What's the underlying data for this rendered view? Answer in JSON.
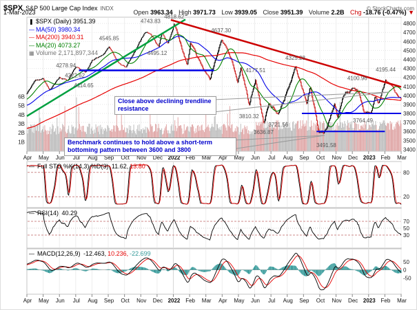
{
  "header": {
    "symbol": "$SPX",
    "name": "S&P 500 Large Cap Index",
    "exchange": "INDX",
    "date": "1-Mar-2023",
    "copyright": "© StockCharts.com",
    "quote": {
      "open_label": "Open",
      "open": "3963.34",
      "high_label": "High",
      "high": "3971.73",
      "low_label": "Low",
      "low": "3939.05",
      "close_label": "Close",
      "close": "3951.39",
      "volume_label": "Volume",
      "volume": "2.2B",
      "chg_label": "Chg",
      "chg": "-18.76 (-0.47%)",
      "direction": "▼"
    }
  },
  "legend": {
    "spx": {
      "icon": "❚",
      "text": "$SPX (Daily) 3951.39",
      "color": "#000000"
    },
    "ma50": {
      "icon": "—",
      "text": "MA(50) 3980.34",
      "color": "#0000e6"
    },
    "ma200": {
      "icon": "—",
      "text": "MA(200) 3940.31",
      "color": "#e60000"
    },
    "ma20": {
      "icon": "—",
      "text": "MA(20) 4073.27",
      "color": "#008000"
    },
    "volume": {
      "icon": "▦",
      "text": "Volume 2,171,897,344",
      "color": "#777777"
    }
  },
  "panels": {
    "sto": {
      "icon": "—",
      "name": "Full STO %K(14,3) %D(3)",
      "k": "11.62,",
      "k_color": "#000000",
      "d": "13.80",
      "d_color": "#e60000",
      "ticks": [
        80,
        20
      ],
      "bands": [
        80,
        20
      ]
    },
    "rsi": {
      "icon": "—",
      "name": "RSI(14)",
      "value": "40.29",
      "value_color": "#000000",
      "ticks": [
        70,
        50,
        30
      ],
      "bands": [
        70,
        30
      ],
      "mid": 50
    },
    "macd": {
      "icon": "—",
      "name": "MACD(12,26,9)",
      "v1": "-12.463,",
      "v1_color": "#000000",
      "v2": "10.236,",
      "v2_color": "#e60000",
      "v3": "-22.699",
      "v3_color": "#339999",
      "ticks": [
        50,
        0,
        -50
      ]
    }
  },
  "axis": {
    "months": [
      "Apr",
      "May",
      "Jun",
      "Jul",
      "Aug",
      "Sep",
      "Oct",
      "Nov",
      "Dec",
      "2022",
      "Feb",
      "Mar",
      "Apr",
      "May",
      "Jun",
      "Jul",
      "Aug",
      "Sep",
      "Oct",
      "Nov",
      "Dec",
      "2023",
      "Feb",
      "Mar"
    ],
    "price_ticks": [
      4800,
      4700,
      4600,
      4500,
      4400,
      4300,
      4200,
      4100,
      4000,
      3900,
      3800,
      3700,
      3600,
      3500,
      3400
    ],
    "volume_ticks": [
      {
        "label": "6B",
        "v": 6
      },
      {
        "label": "5B",
        "v": 5
      },
      {
        "label": "4B",
        "v": 4
      },
      {
        "label": "3B",
        "v": 3
      },
      {
        "label": "2B",
        "v": 2
      },
      {
        "label": "1B",
        "v": 1
      }
    ]
  },
  "annotations": {
    "callout1": "Close above declining trendline resistance",
    "callout2": "Benchmark continues to hold above a short-term bottoming pattern between 3600 and 3800",
    "pointers": [
      [
        309,
        144,
        564,
        133
      ],
      [
        309,
        162,
        564,
        133
      ],
      [
        336,
        203,
        470,
        196
      ],
      [
        336,
        216,
        470,
        196
      ]
    ],
    "price_labels": [
      {
        "text": "4545.85",
        "t": 5.05,
        "price": 4615
      },
      {
        "text": "4743.83",
        "t": 7.6,
        "price": 4805
      },
      {
        "text": "4818.62",
        "t": 9.05,
        "price": 4855
      },
      {
        "text": "4637.30",
        "t": 11.93,
        "price": 4700
      },
      {
        "text": "4495.12",
        "t": 8.0,
        "price": 4450
      },
      {
        "text": "4278.94",
        "t": 2.4,
        "price": 4312
      },
      {
        "text": "4222.62",
        "t": 2.95,
        "price": 4200
      },
      {
        "text": "4114.65",
        "t": 3.5,
        "price": 4090
      },
      {
        "text": "4177.51",
        "t": 14.05,
        "price": 4260
      },
      {
        "text": "4325.28",
        "t": 16.5,
        "price": 4395
      },
      {
        "text": "4100.96",
        "t": 20.3,
        "price": 4170
      },
      {
        "text": "4195.44",
        "t": 22.05,
        "price": 4265
      },
      {
        "text": "3810.32",
        "t": 13.65,
        "price": 3745
      },
      {
        "text": "3721.56",
        "t": 15.45,
        "price": 3655
      },
      {
        "text": "3636.87",
        "t": 14.55,
        "price": 3570
      },
      {
        "text": "3764.49",
        "t": 20.65,
        "price": 3700
      },
      {
        "text": "3491.58",
        "t": 18.4,
        "price": 3425
      }
    ]
  },
  "chart_data": {
    "type": "candlestick",
    "title": "$SPX S&P 500 Large Cap Index - Daily candlesticks with MA(20), MA(50), MA(200), volume overlay, Full Stochastic, RSI and MACD panels",
    "x_range": [
      "Apr-2021",
      "Mar-2023"
    ],
    "price_range": [
      3380,
      4870
    ],
    "last_close": 3951.39,
    "ma_values": {
      "ma20": 4073.27,
      "ma50": 3980.34,
      "ma200": 3940.31
    },
    "indicator_values": {
      "sto_k": 11.62,
      "sto_d": 13.8,
      "rsi": 40.29,
      "macd": -12.463,
      "macd_signal": 10.236,
      "macd_hist": -22.699
    },
    "key_points": [
      4818.62,
      4743.83,
      4637.3,
      4545.85,
      4495.12,
      4325.28,
      4278.94,
      4222.62,
      4195.44,
      4177.51,
      4114.65,
      4100.96,
      3810.32,
      3764.49,
      3721.56,
      3636.87,
      3491.58
    ],
    "pre_anchors": [
      [
        -9,
        3235
      ],
      [
        -7.5,
        3390
      ],
      [
        -7,
        3310
      ],
      [
        -6,
        3585
      ],
      [
        -5,
        3560
      ],
      [
        -4,
        3695
      ],
      [
        -3.5,
        3750
      ],
      [
        -2.5,
        3910
      ],
      [
        -2,
        3790
      ],
      [
        -1,
        3900
      ],
      [
        -0.3,
        3970
      ]
    ],
    "close_anchors": [
      [
        0,
        4020
      ],
      [
        0.5,
        4165
      ],
      [
        1,
        4185
      ],
      [
        1.4,
        4060
      ],
      [
        2,
        4200
      ],
      [
        2.55,
        4170
      ],
      [
        3,
        4320
      ],
      [
        3.6,
        4260
      ],
      [
        4,
        4390
      ],
      [
        4.6,
        4440
      ],
      [
        5.05,
        4535
      ],
      [
        5.65,
        4360
      ],
      [
        6.1,
        4310
      ],
      [
        6.85,
        4570
      ],
      [
        7.25,
        4700
      ],
      [
        7.6,
        4690
      ],
      [
        8.1,
        4540
      ],
      [
        8.3,
        4710
      ],
      [
        8.65,
        4570
      ],
      [
        9.05,
        4795
      ],
      [
        9.85,
        4330
      ],
      [
        10.05,
        4590
      ],
      [
        10.8,
        4290
      ],
      [
        11.25,
        4175
      ],
      [
        11.93,
        4630
      ],
      [
        12.6,
        4395
      ],
      [
        12.95,
        4135
      ],
      [
        13.15,
        4295
      ],
      [
        13.65,
        3905
      ],
      [
        14.05,
        4175
      ],
      [
        14.55,
        3675
      ],
      [
        14.85,
        3900
      ],
      [
        15.45,
        3795
      ],
      [
        15.8,
        3960
      ],
      [
        16.5,
        4300
      ],
      [
        17.2,
        3910
      ],
      [
        17.4,
        4105
      ],
      [
        17.95,
        3590
      ],
      [
        18.25,
        3585
      ],
      [
        18.45,
        3660
      ],
      [
        18.9,
        3900
      ],
      [
        19.1,
        3740
      ],
      [
        19.4,
        3990
      ],
      [
        20.0,
        4075
      ],
      [
        20.4,
        4020
      ],
      [
        20.7,
        3825
      ],
      [
        21.0,
        3840
      ],
      [
        21.15,
        3810
      ],
      [
        21.4,
        3995
      ],
      [
        21.6,
        3900
      ],
      [
        22.05,
        4175
      ],
      [
        22.5,
        4080
      ],
      [
        22.8,
        3975
      ],
      [
        23,
        3951
      ]
    ],
    "trendlines": [
      {
        "t1": 0,
        "p1": 3770,
        "t2": 9.74,
        "p2": 4845,
        "color": "#00A040",
        "w": 2.5,
        "name": "rising-support-trendline"
      },
      {
        "t1": 8.85,
        "p1": 4840,
        "t2": 23,
        "p2": 4095,
        "color": "#CC0000",
        "w": 2.5,
        "name": "declining-resistance-trendline"
      }
    ],
    "levels": [
      {
        "price": 4278.94,
        "t1": 3.2,
        "t2": 11.5,
        "w": 2.5
      },
      {
        "price": 3800,
        "t1": 16.9,
        "t2": 23,
        "w": 2
      },
      {
        "price": 3600,
        "t1": 17.8,
        "t2": 22,
        "w": 2
      }
    ],
    "level_color": "#0000e6"
  }
}
